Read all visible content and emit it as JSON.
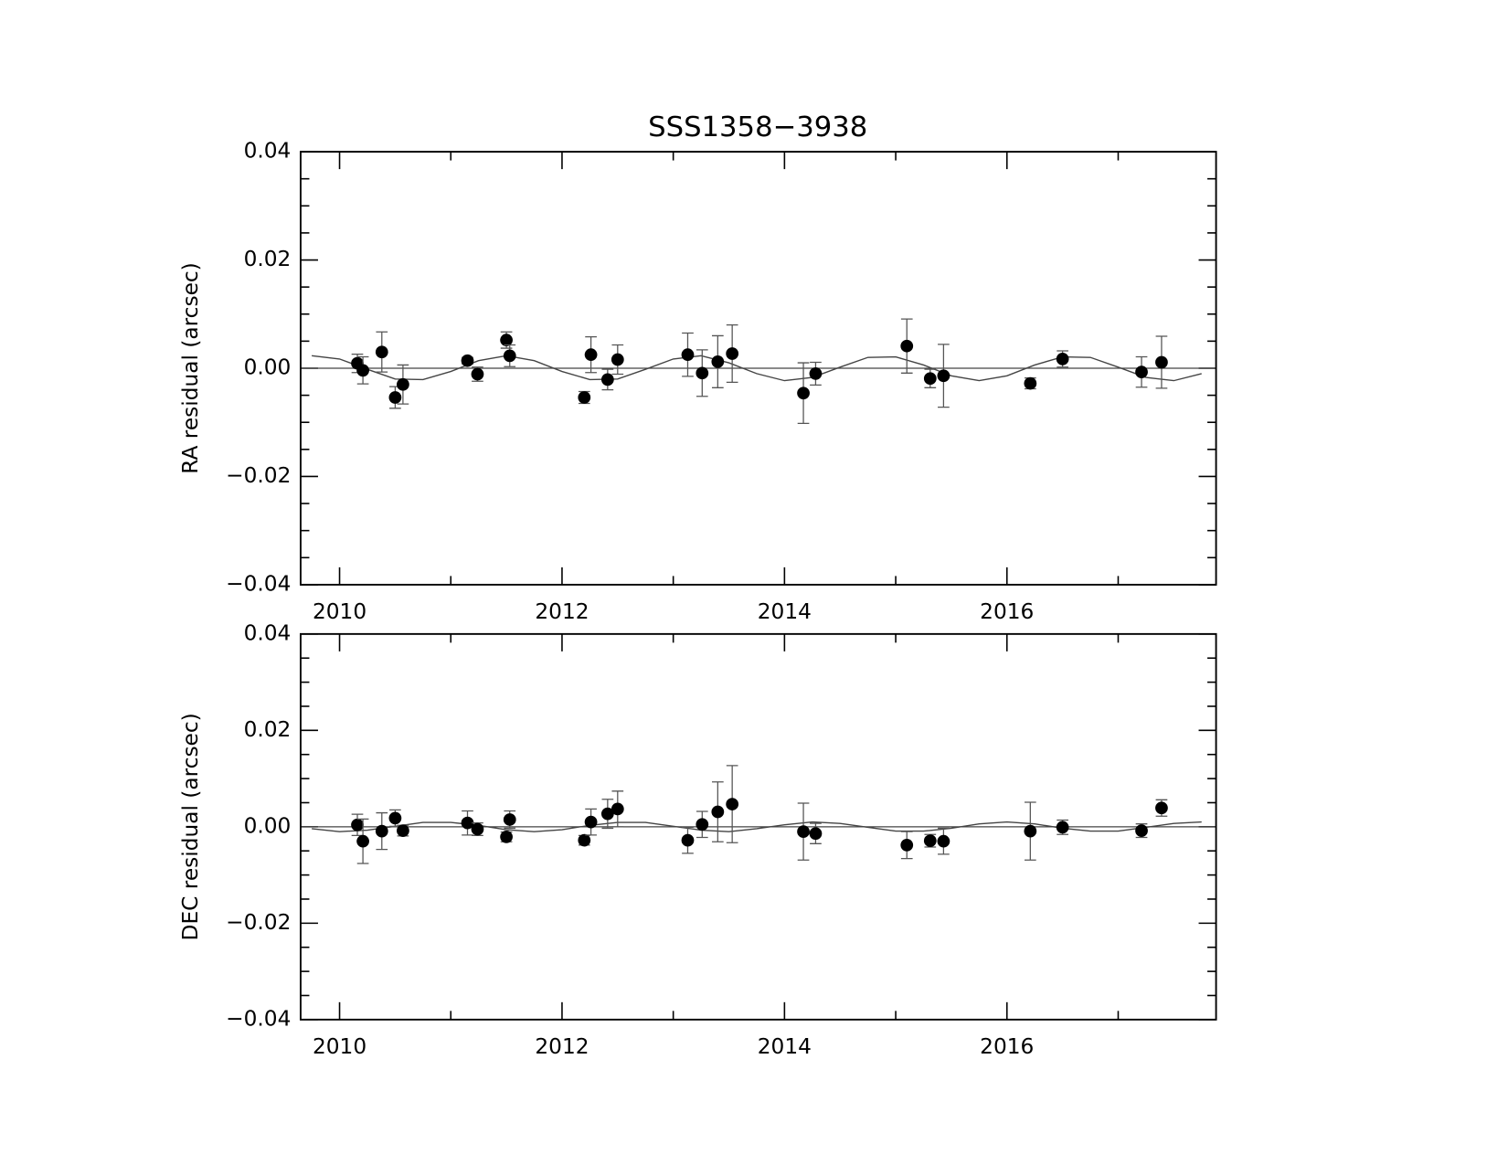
{
  "chart_data": [
    {
      "type": "scatter",
      "title": "SSS1358−3938",
      "y_label": "RA residual (arcsec)",
      "x": [
        2010.16,
        2010.21,
        2010.38,
        2010.5,
        2010.57,
        2011.15,
        2011.24,
        2011.5,
        2011.53,
        2012.2,
        2012.26,
        2012.41,
        2012.5,
        2013.13,
        2013.26,
        2013.4,
        2013.53,
        2014.17,
        2014.28,
        2015.1,
        2015.31,
        2015.43,
        2016.21,
        2016.5,
        2017.21,
        2017.39
      ],
      "series": [
        {
          "color": "#000000",
          "values": [
            0.0009,
            -0.0004,
            0.003,
            -0.0054,
            -0.003,
            0.0014,
            -0.0011,
            0.0052,
            0.0023,
            -0.0054,
            0.0025,
            -0.0021,
            0.0016,
            0.0025,
            -0.0009,
            0.0012,
            0.0027,
            -0.0046,
            -0.001,
            0.0041,
            -0.0019,
            -0.0014,
            -0.0028,
            0.0017,
            -0.0007,
            0.0011
          ],
          "errors": [
            0.0017,
            0.0025,
            0.0037,
            0.002,
            0.0036,
            0.0006,
            0.0013,
            0.0015,
            0.002,
            0.0011,
            0.0033,
            0.0019,
            0.0027,
            0.004,
            0.0043,
            0.0048,
            0.0053,
            0.0056,
            0.0021,
            0.005,
            0.0017,
            0.0058,
            0.001,
            0.0015,
            0.0028,
            0.0048
          ]
        }
      ],
      "fit": {
        "color": "#444444",
        "x": [
          2009.75,
          2010,
          2010.25,
          2010.5,
          2010.75,
          2011,
          2011.25,
          2011.5,
          2011.75,
          2012,
          2012.25,
          2012.5,
          2012.75,
          2013,
          2013.25,
          2013.5,
          2013.75,
          2014,
          2014.25,
          2014.5,
          2014.75,
          2015,
          2015.25,
          2015.5,
          2015.75,
          2016,
          2016.25,
          2016.5,
          2016.75,
          2017,
          2017.25,
          2017.5,
          2017.75
        ],
        "values": [
          0.0023,
          0.0017,
          -0.0002,
          -0.002,
          -0.0021,
          -0.0006,
          0.0014,
          0.0023,
          0.0014,
          -0.0006,
          -0.0021,
          -0.002,
          -0.0002,
          0.0017,
          0.0023,
          0.001,
          -0.001,
          -0.0023,
          -0.0017,
          0.0002,
          0.002,
          0.0021,
          0.0006,
          -0.0014,
          -0.0023,
          -0.0014,
          0.0006,
          0.0021,
          0.002,
          0.0002,
          -0.0017,
          -0.0023,
          -0.001
        ]
      },
      "hline": 0,
      "xlim": [
        2009.65,
        2017.88
      ],
      "xticks": [
        2010,
        2012,
        2014,
        2016
      ],
      "xminorticks": [
        2011,
        2013,
        2015,
        2017
      ],
      "ylim": [
        -0.04,
        0.04
      ],
      "yticks": [
        {
          "value": -0.04,
          "label": "−0.04"
        },
        {
          "value": -0.02,
          "label": "−0.02"
        },
        {
          "value": 0,
          "label": "0.00"
        },
        0.02,
        0.04
      ],
      "yminorticks": [
        -0.035,
        -0.03,
        -0.025,
        -0.015,
        -0.01,
        -0.005,
        0.005,
        0.01,
        0.015,
        0.025,
        0.03,
        0.035
      ]
    },
    {
      "type": "scatter",
      "y_label": "DEC residual (arcsec)",
      "x": [
        2010.16,
        2010.21,
        2010.38,
        2010.5,
        2010.57,
        2011.15,
        2011.24,
        2011.5,
        2011.53,
        2012.2,
        2012.26,
        2012.41,
        2012.5,
        2013.13,
        2013.26,
        2013.4,
        2013.53,
        2014.17,
        2014.28,
        2015.1,
        2015.31,
        2015.43,
        2016.21,
        2016.5,
        2017.21,
        2017.39
      ],
      "series": [
        {
          "color": "#000000",
          "values": [
            0.0004,
            -0.003,
            -0.0009,
            0.0018,
            -0.0008,
            0.0008,
            -0.0005,
            -0.0021,
            0.0015,
            -0.0028,
            0.001,
            0.0027,
            0.0037,
            -0.0028,
            0.0005,
            0.0031,
            0.0047,
            -0.001,
            -0.0014,
            -0.0038,
            -0.0029,
            -0.003,
            -0.0009,
            -0.0001,
            -0.0008,
            0.0039
          ],
          "errors": [
            0.0022,
            0.0046,
            0.0038,
            0.0017,
            0.0011,
            0.0025,
            0.0013,
            0.001,
            0.0018,
            0.001,
            0.0027,
            0.003,
            0.0037,
            0.0027,
            0.0027,
            0.0062,
            0.008,
            0.0059,
            0.0021,
            0.0028,
            0.0013,
            0.0027,
            0.006,
            0.0015,
            0.0014,
            0.0017
          ]
        }
      ],
      "fit": {
        "color": "#444444",
        "x": [
          2009.75,
          2010,
          2010.25,
          2010.5,
          2010.75,
          2011,
          2011.25,
          2011.5,
          2011.75,
          2012,
          2012.25,
          2012.5,
          2012.75,
          2013,
          2013.25,
          2013.5,
          2013.75,
          2014,
          2014.25,
          2014.5,
          2014.75,
          2015,
          2015.25,
          2015.5,
          2015.75,
          2016,
          2016.25,
          2016.5,
          2016.75,
          2017,
          2017.25,
          2017.5,
          2017.75
        ],
        "values": [
          -0.0004,
          -0.001,
          -0.0007,
          0.0001,
          0.0009,
          0.0009,
          0.0003,
          -0.0006,
          -0.001,
          -0.0006,
          0.0003,
          0.0009,
          0.0009,
          0.0001,
          -0.0007,
          -0.001,
          -0.0004,
          0.0004,
          0.001,
          0.0007,
          -0.0001,
          -0.0009,
          -0.0009,
          -0.0003,
          0.0006,
          0.001,
          0.0006,
          -0.0003,
          -0.0009,
          -0.0009,
          -0.0001,
          0.0007,
          0.001
        ]
      },
      "hline": 0,
      "xlim": [
        2009.65,
        2017.88
      ],
      "xticks": [
        2010,
        2012,
        2014,
        2016
      ],
      "xminorticks": [
        2011,
        2013,
        2015,
        2017
      ],
      "ylim": [
        -0.04,
        0.04
      ],
      "yticks": [
        {
          "value": -0.04,
          "label": "−0.04"
        },
        {
          "value": -0.02,
          "label": "−0.02"
        },
        {
          "value": 0,
          "label": "0.00"
        },
        0.02,
        0.04
      ],
      "yminorticks": [
        -0.035,
        -0.03,
        -0.025,
        -0.015,
        -0.01,
        -0.005,
        0.005,
        0.01,
        0.015,
        0.025,
        0.03,
        0.035
      ]
    }
  ]
}
